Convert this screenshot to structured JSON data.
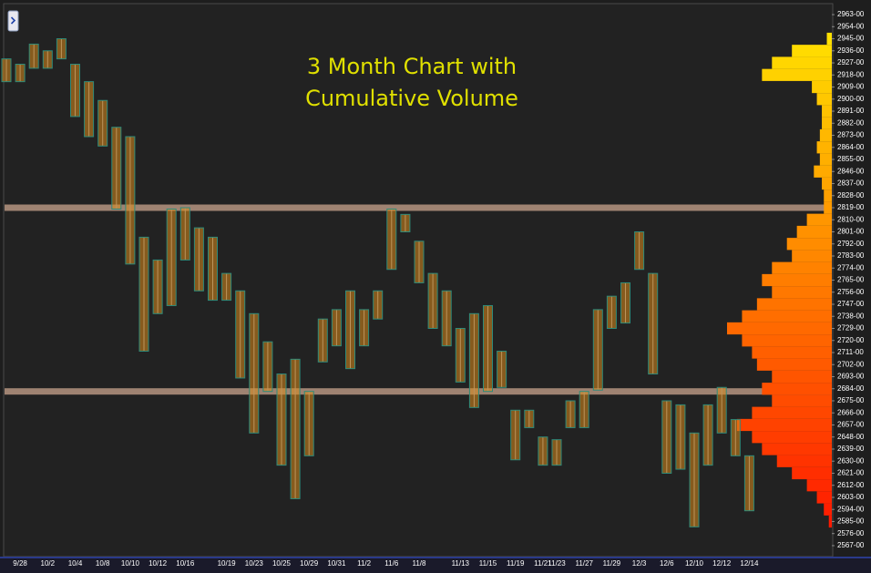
{
  "chart_data": {
    "type": "range",
    "title_lines": [
      "3 Month Chart with",
      "Cumulative Volume"
    ],
    "categories": [
      null,
      "9/28",
      null,
      "10/2",
      null,
      "10/4",
      null,
      "10/8",
      null,
      "10/10",
      null,
      "10/12",
      null,
      "10/16",
      null,
      null,
      "10/19",
      null,
      "10/23",
      null,
      "10/25",
      null,
      "10/29",
      null,
      "10/31",
      null,
      "11/2",
      null,
      "11/6",
      null,
      "11/8",
      null,
      null,
      "11/13",
      null,
      "11/15",
      null,
      "11/19",
      null,
      "11/21",
      "11/23",
      null,
      "11/27",
      null,
      "11/29",
      null,
      "12/3",
      null,
      "12/6",
      null,
      "12/10",
      null,
      "12/12",
      null,
      "12/14"
    ],
    "high": [
      2930,
      2926,
      2941,
      2936,
      2945,
      2926,
      2913,
      2899,
      2879,
      2872,
      2797,
      2780,
      2818,
      2819,
      2804,
      2797,
      2770,
      2757,
      2740,
      2719,
      2695,
      2706,
      2682,
      2736,
      2743,
      2757,
      2743,
      2757,
      2818,
      2814,
      2794,
      2770,
      2757,
      2729,
      2740,
      2746,
      2712,
      2668,
      2668,
      2648,
      2646,
      2675,
      2682,
      2743,
      2753,
      2763,
      2801,
      2770,
      2675,
      2672,
      2651,
      2672,
      2685,
      2661,
      2634
    ],
    "low": [
      2913,
      2913,
      2923,
      2923,
      2930,
      2887,
      2872,
      2865,
      2818,
      2777,
      2712,
      2740,
      2746,
      2780,
      2757,
      2750,
      2750,
      2692,
      2651,
      2682,
      2627,
      2602,
      2634,
      2704,
      2716,
      2699,
      2716,
      2736,
      2773,
      2801,
      2763,
      2729,
      2716,
      2689,
      2670,
      2682,
      2685,
      2631,
      2655,
      2627,
      2627,
      2655,
      2655,
      2683,
      2729,
      2733,
      2773,
      2695,
      2621,
      2624,
      2581,
      2627,
      2651,
      2634,
      2593
    ],
    "range_color": "#2e8b7a",
    "body_color": "#d98a1c",
    "profile": {
      "prices": [
        2945,
        2936,
        2927,
        2918,
        2909,
        2900,
        2891,
        2882,
        2873,
        2864,
        2855,
        2846,
        2837,
        2828,
        2819,
        2810,
        2801,
        2792,
        2783,
        2774,
        2765,
        2756,
        2747,
        2738,
        2729,
        2720,
        2711,
        2702,
        2693,
        2684,
        2675,
        2666,
        2657,
        2648,
        2639,
        2630,
        2621,
        2612,
        2603,
        2594,
        2585
      ],
      "volumes": [
        5,
        40,
        60,
        70,
        20,
        15,
        10,
        10,
        12,
        15,
        12,
        18,
        10,
        8,
        8,
        25,
        35,
        45,
        40,
        60,
        70,
        60,
        75,
        90,
        105,
        90,
        80,
        75,
        60,
        70,
        60,
        80,
        95,
        80,
        70,
        55,
        40,
        25,
        15,
        8,
        3
      ],
      "top_color": "#ffe000",
      "bottom_color": "#ff1a00"
    },
    "bands": [
      2819,
      2682
    ],
    "band_color": "#c9a48e",
    "ylim": [
      2559.5,
      2970.5
    ],
    "yticks": [
      {
        "value": 2963,
        "label": "2963-00"
      },
      {
        "value": 2954,
        "label": "2954-00"
      },
      {
        "value": 2945,
        "label": "2945-00"
      },
      {
        "value": 2936,
        "label": "2936-00"
      },
      {
        "value": 2927,
        "label": "2927-00"
      },
      {
        "value": 2918,
        "label": "2918-00"
      },
      {
        "value": 2909,
        "label": "2909-00"
      },
      {
        "value": 2900,
        "label": "2900-00"
      },
      {
        "value": 2891,
        "label": "2891-00"
      },
      {
        "value": 2882,
        "label": "2882-00"
      },
      {
        "value": 2873,
        "label": "2873-00"
      },
      {
        "value": 2864,
        "label": "2864-00"
      },
      {
        "value": 2855,
        "label": "2855-00"
      },
      {
        "value": 2846,
        "label": "2846-00"
      },
      {
        "value": 2837,
        "label": "2837-00"
      },
      {
        "value": 2828,
        "label": "2828-00"
      },
      {
        "value": 2819,
        "label": "2819-00"
      },
      {
        "value": 2810,
        "label": "2810-00"
      },
      {
        "value": 2801,
        "label": "2801-00"
      },
      {
        "value": 2792,
        "label": "2792-00"
      },
      {
        "value": 2783,
        "label": "2783-00"
      },
      {
        "value": 2774,
        "label": "2774-00"
      },
      {
        "value": 2765,
        "label": "2765-00"
      },
      {
        "value": 2756,
        "label": "2756-00"
      },
      {
        "value": 2747,
        "label": "2747-00"
      },
      {
        "value": 2738,
        "label": "2738-00"
      },
      {
        "value": 2729,
        "label": "2729-00"
      },
      {
        "value": 2720,
        "label": "2720-00"
      },
      {
        "value": 2711,
        "label": "2711-00"
      },
      {
        "value": 2702,
        "label": "2702-00"
      },
      {
        "value": 2693,
        "label": "2693-00"
      },
      {
        "value": 2684,
        "label": "2684-00"
      },
      {
        "value": 2675,
        "label": "2675-00"
      },
      {
        "value": 2666,
        "label": "2666-00"
      },
      {
        "value": 2657,
        "label": "2657-00"
      },
      {
        "value": 2648,
        "label": "2648-00"
      },
      {
        "value": 2639,
        "label": "2639-00"
      },
      {
        "value": 2630,
        "label": "2630-00"
      },
      {
        "value": 2621,
        "label": "2621-00"
      },
      {
        "value": 2612,
        "label": "2612-00"
      },
      {
        "value": 2603,
        "label": "2603-00"
      },
      {
        "value": 2594,
        "label": "2594-00"
      },
      {
        "value": 2585,
        "label": "2585-00"
      },
      {
        "value": 2576,
        "label": "2576-00"
      },
      {
        "value": 2567,
        "label": "2567-00"
      }
    ]
  }
}
